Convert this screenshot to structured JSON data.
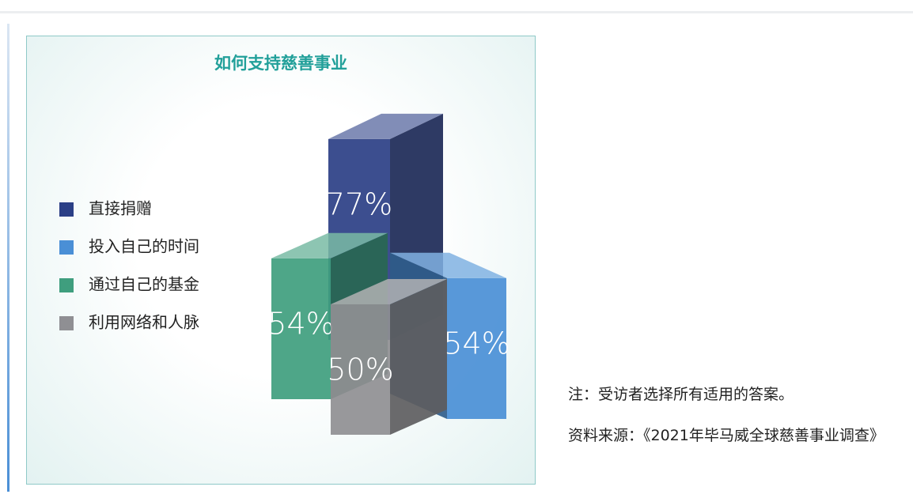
{
  "chart_data": {
    "type": "bar3d",
    "title": "如何支持慈善事业",
    "categories": [
      "直接捐赠",
      "投入自己的时间",
      "通过自己的基金",
      "利用网络和人脉"
    ],
    "values": [
      77,
      54,
      54,
      50
    ],
    "value_labels": [
      "77%",
      "54%",
      "54%",
      "50%"
    ],
    "colors": [
      "#2b3f86",
      "#4a8fd6",
      "#3f9e7e",
      "#8f8f93"
    ]
  },
  "notes": [
    "注：受访者选择所有适用的答案。",
    "资料来源：《2021年毕马威全球慈善事业调查》"
  ]
}
